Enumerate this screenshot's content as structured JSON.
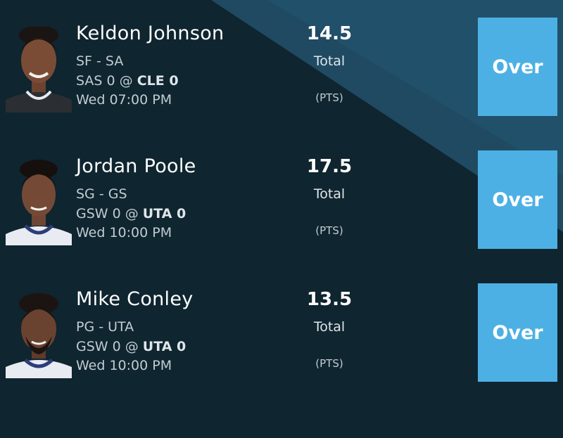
{
  "picks": [
    {
      "player_name": "Keldon Johnson",
      "position": "SF - SA",
      "away_team": "SAS 0",
      "at": " @ ",
      "home_team": "CLE 0",
      "game_time": "Wed 07:00 PM",
      "line_value": "14.5",
      "line_label": "Total",
      "stat_unit": "(PTS)",
      "button_label": "Over",
      "jersey_color": "#2b2f33"
    },
    {
      "player_name": "Jordan Poole",
      "position": "SG - GS",
      "away_team": "GSW 0",
      "at": " @ ",
      "home_team": "UTA 0",
      "game_time": "Wed 10:00 PM",
      "line_value": "17.5",
      "line_label": "Total",
      "stat_unit": "(PTS)",
      "button_label": "Over",
      "jersey_color": "#e9ebf2"
    },
    {
      "player_name": "Mike Conley",
      "position": "PG - UTA",
      "away_team": "GSW 0",
      "at": " @ ",
      "home_team": "UTA 0",
      "game_time": "Wed 10:00 PM",
      "line_value": "13.5",
      "line_label": "Total",
      "stat_unit": "(PTS)",
      "button_label": "Over",
      "jersey_color": "#e9ebf2"
    }
  ],
  "colors": {
    "background": "#0f2530",
    "accent_band": "#1f4a62",
    "button": "#4db0e4"
  }
}
